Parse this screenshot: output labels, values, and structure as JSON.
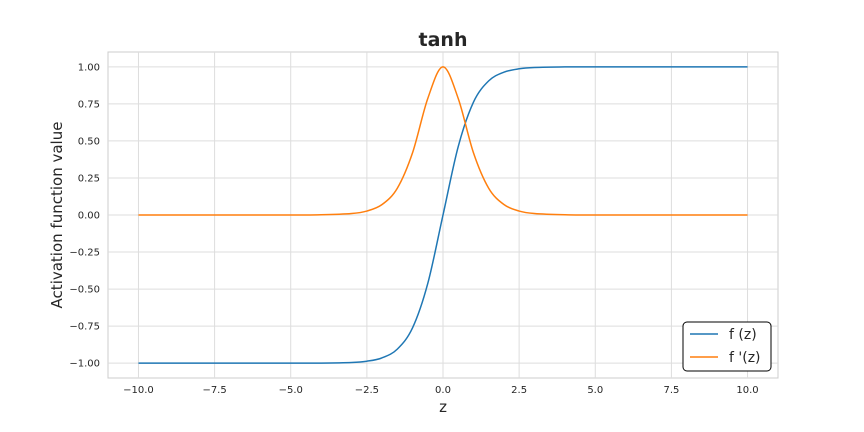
{
  "chart_data": {
    "type": "line",
    "title": "tanh",
    "xlabel": "z",
    "ylabel": "Activation function value",
    "xlim": [
      -11,
      11
    ],
    "ylim": [
      -1.1,
      1.1
    ],
    "xticks": [
      -10,
      -7.5,
      -5,
      -2.5,
      0,
      2.5,
      5,
      7.5,
      10
    ],
    "xtick_labels": [
      "−10.0",
      "−7.5",
      "−5.0",
      "−2.5",
      "0.0",
      "2.5",
      "5.0",
      "7.5",
      "10.0"
    ],
    "yticks": [
      -1,
      -0.75,
      -0.5,
      -0.25,
      0,
      0.25,
      0.5,
      0.75,
      1
    ],
    "ytick_labels": [
      "−1.00",
      "−0.75",
      "−0.50",
      "−0.25",
      "0.00",
      "0.25",
      "0.50",
      "0.75",
      "1.00"
    ],
    "grid": true,
    "legend_position": "bottom-right",
    "series": [
      {
        "name": "f (z)",
        "color": "#1f77b4",
        "x": [
          -10,
          -5,
          -4,
          -3,
          -2.5,
          -2,
          -1.5,
          -1,
          -0.5,
          0,
          0.5,
          1,
          1.5,
          2,
          2.5,
          3,
          4,
          5,
          10
        ],
        "y": [
          -1.0,
          -0.9999,
          -0.9993,
          -0.9951,
          -0.9866,
          -0.964,
          -0.9051,
          -0.7616,
          -0.4621,
          0.0,
          0.4621,
          0.7616,
          0.9051,
          0.964,
          0.9866,
          0.9951,
          0.9993,
          0.9999,
          1.0
        ]
      },
      {
        "name": "f '(z)",
        "color": "#ff7f0e",
        "x": [
          -10,
          -5,
          -4,
          -3,
          -2.5,
          -2,
          -1.5,
          -1,
          -0.5,
          0,
          0.5,
          1,
          1.5,
          2,
          2.5,
          3,
          4,
          5,
          10
        ],
        "y": [
          0.0,
          0.0002,
          0.0013,
          0.0099,
          0.0266,
          0.0707,
          0.1807,
          0.42,
          0.7864,
          1.0,
          0.7864,
          0.42,
          0.1807,
          0.0707,
          0.0266,
          0.0099,
          0.0013,
          0.0002,
          0.0
        ]
      }
    ]
  }
}
